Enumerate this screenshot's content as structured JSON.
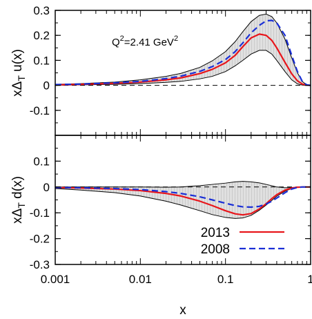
{
  "chart_data": [
    {
      "type": "line",
      "panel": "top",
      "x_scale": "log",
      "xlim": [
        0.001,
        1
      ],
      "ylim": [
        -0.2,
        0.3
      ],
      "yticks": [
        "0.3",
        "0.2",
        "0.1",
        "0",
        "-0.1"
      ],
      "ylabel_parts": {
        "pre": "x",
        "delta": "Δ",
        "sub": "T",
        "post": " u(x)"
      },
      "annotation": {
        "q": "Q",
        "sup1": "2",
        "mid": "=2.41 GeV",
        "sup2": "2"
      },
      "series": [
        {
          "name": "2013",
          "color": "#e8151b",
          "style": "solid",
          "x": [
            0.001,
            0.002,
            0.005,
            0.01,
            0.02,
            0.03,
            0.05,
            0.07,
            0.1,
            0.13,
            0.16,
            0.2,
            0.25,
            0.3,
            0.35,
            0.4,
            0.5,
            0.6,
            0.7,
            0.8,
            0.9,
            1.0
          ],
          "y": [
            0.002,
            0.004,
            0.008,
            0.013,
            0.022,
            0.03,
            0.047,
            0.064,
            0.09,
            0.12,
            0.155,
            0.19,
            0.205,
            0.2,
            0.18,
            0.15,
            0.092,
            0.046,
            0.018,
            0.005,
            0.001,
            0
          ]
        },
        {
          "name": "2008",
          "color": "#1a2fd6",
          "style": "dashed",
          "x": [
            0.001,
            0.002,
            0.005,
            0.01,
            0.02,
            0.03,
            0.05,
            0.07,
            0.1,
            0.13,
            0.16,
            0.2,
            0.25,
            0.3,
            0.35,
            0.4,
            0.5,
            0.6,
            0.7,
            0.8,
            0.9,
            1.0
          ],
          "y": [
            0.003,
            0.005,
            0.01,
            0.016,
            0.027,
            0.037,
            0.056,
            0.075,
            0.103,
            0.135,
            0.17,
            0.21,
            0.24,
            0.258,
            0.26,
            0.25,
            0.2,
            0.12,
            0.055,
            0.015,
            0.002,
            0
          ]
        }
      ],
      "band": {
        "x": [
          0.001,
          0.002,
          0.005,
          0.01,
          0.02,
          0.03,
          0.05,
          0.07,
          0.1,
          0.13,
          0.16,
          0.2,
          0.25,
          0.3,
          0.35,
          0.4,
          0.5,
          0.6,
          0.7,
          0.8,
          0.9,
          1.0
        ],
        "upper": [
          0.004,
          0.007,
          0.013,
          0.022,
          0.036,
          0.048,
          0.072,
          0.098,
          0.135,
          0.175,
          0.215,
          0.255,
          0.28,
          0.285,
          0.275,
          0.25,
          0.185,
          0.11,
          0.05,
          0.015,
          0.002,
          0
        ],
        "lower": [
          0.0,
          0.002,
          0.004,
          0.007,
          0.012,
          0.016,
          0.026,
          0.036,
          0.055,
          0.078,
          0.1,
          0.125,
          0.14,
          0.14,
          0.125,
          0.1,
          0.055,
          0.022,
          0.006,
          0.001,
          0,
          0
        ]
      }
    },
    {
      "type": "line",
      "panel": "bottom",
      "x_scale": "log",
      "xlim": [
        0.001,
        1
      ],
      "ylim": [
        -0.3,
        0.2
      ],
      "yticks": [
        "0.1",
        "0",
        "-0.1",
        "-0.2",
        "-0.3"
      ],
      "xticks": [
        "0.001",
        "0.01",
        "0.1",
        "1"
      ],
      "xlabel": "x",
      "ylabel_parts": {
        "pre": "x",
        "delta": "Δ",
        "sub": "T",
        "post": " d(x)"
      },
      "legend": {
        "position": "bottom-right",
        "entries": [
          "2013",
          "2008"
        ]
      },
      "series": [
        {
          "name": "2013",
          "color": "#e8151b",
          "style": "solid",
          "x": [
            0.001,
            0.002,
            0.005,
            0.01,
            0.02,
            0.03,
            0.05,
            0.07,
            0.1,
            0.13,
            0.16,
            0.2,
            0.25,
            0.3,
            0.35,
            0.4,
            0.5,
            0.6,
            0.7,
            0.8,
            0.9,
            1.0
          ],
          "y": [
            -0.002,
            -0.004,
            -0.008,
            -0.014,
            -0.025,
            -0.035,
            -0.055,
            -0.072,
            -0.092,
            -0.104,
            -0.108,
            -0.103,
            -0.085,
            -0.065,
            -0.045,
            -0.03,
            -0.012,
            -0.004,
            -0.001,
            0,
            0,
            0
          ]
        },
        {
          "name": "2008",
          "color": "#1a2fd6",
          "style": "dashed",
          "x": [
            0.001,
            0.002,
            0.005,
            0.01,
            0.02,
            0.03,
            0.05,
            0.07,
            0.1,
            0.13,
            0.16,
            0.2,
            0.25,
            0.3,
            0.35,
            0.4,
            0.5,
            0.6,
            0.7,
            0.8,
            0.9,
            1.0
          ],
          "y": [
            -0.002,
            -0.003,
            -0.006,
            -0.01,
            -0.018,
            -0.025,
            -0.038,
            -0.05,
            -0.063,
            -0.072,
            -0.077,
            -0.078,
            -0.075,
            -0.066,
            -0.055,
            -0.043,
            -0.022,
            -0.008,
            -0.002,
            0,
            0,
            0
          ]
        }
      ],
      "band": {
        "x": [
          0.001,
          0.002,
          0.005,
          0.01,
          0.02,
          0.03,
          0.05,
          0.07,
          0.1,
          0.13,
          0.16,
          0.2,
          0.25,
          0.3,
          0.35,
          0.4,
          0.5,
          0.6,
          0.7,
          0.8,
          0.9,
          1.0
        ],
        "upper": [
          0.0,
          0.0,
          0.0,
          0.0,
          -0.001,
          0.0,
          0.005,
          0.01,
          0.015,
          0.02,
          0.022,
          0.02,
          0.016,
          0.01,
          0.005,
          0.0,
          -0.003,
          -0.002,
          -0.001,
          0,
          0,
          0
        ],
        "lower": [
          -0.006,
          -0.012,
          -0.022,
          -0.035,
          -0.055,
          -0.07,
          -0.092,
          -0.107,
          -0.118,
          -0.122,
          -0.12,
          -0.11,
          -0.09,
          -0.07,
          -0.052,
          -0.036,
          -0.016,
          -0.006,
          -0.001,
          0,
          0,
          0
        ]
      }
    }
  ]
}
